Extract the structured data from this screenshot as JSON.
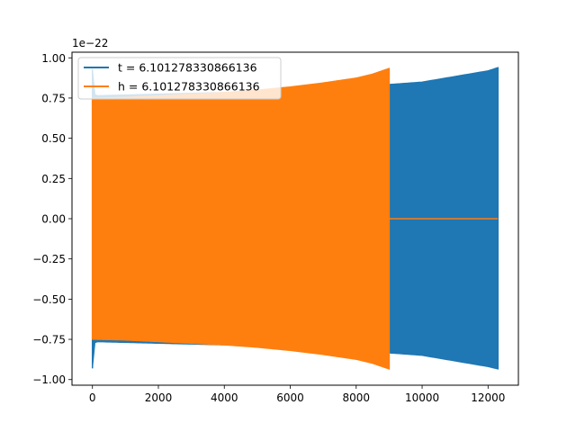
{
  "chart_data": {
    "type": "area",
    "title": "",
    "xlabel": "",
    "ylabel": "",
    "offset_text": "1e−22",
    "xlim": [
      -620,
      12920
    ],
    "ylim": [
      -1.035,
      1.035
    ],
    "xticks": [
      0,
      2000,
      4000,
      6000,
      8000,
      10000,
      12000
    ],
    "xtick_labels": [
      "0",
      "2000",
      "4000",
      "6000",
      "8000",
      "10000",
      "12000"
    ],
    "yticks": [
      -1.0,
      -0.75,
      -0.5,
      -0.25,
      0.0,
      0.25,
      0.5,
      0.75,
      1.0
    ],
    "ytick_labels": [
      "−1.00",
      "−0.75",
      "−0.50",
      "−0.25",
      "0.00",
      "0.25",
      "0.50",
      "0.75",
      "1.00"
    ],
    "grid": false,
    "legend_position": "top-left",
    "series": [
      {
        "name": "t = 6.101278330866136",
        "color": "#1f77b4",
        "x_start": 0,
        "x_end": 12300,
        "envelope_x": [
          0,
          20,
          50,
          80,
          100,
          2000,
          4000,
          6000,
          8000,
          9000,
          10000,
          12000,
          12300
        ],
        "envelope_upper": [
          0.93,
          0.8,
          0.78,
          0.77,
          0.765,
          0.775,
          0.785,
          0.8,
          0.82,
          0.835,
          0.85,
          0.92,
          0.94
        ],
        "envelope_lower": [
          -0.93,
          -0.8,
          -0.78,
          -0.77,
          -0.765,
          -0.775,
          -0.785,
          -0.8,
          -0.82,
          -0.835,
          -0.85,
          -0.92,
          -0.935
        ]
      },
      {
        "name": "h = 6.101278330866136",
        "color": "#ff7f0e",
        "x_start": 0,
        "x_end": 9000,
        "after_value": 0.0,
        "after_x_end": 12300,
        "envelope_x": [
          0,
          1000,
          2000,
          3000,
          4000,
          5000,
          6000,
          7000,
          8000,
          8500,
          9000
        ],
        "envelope_upper": [
          0.75,
          0.755,
          0.765,
          0.775,
          0.785,
          0.8,
          0.82,
          0.845,
          0.875,
          0.9,
          0.935
        ],
        "envelope_lower": [
          -0.75,
          -0.755,
          -0.765,
          -0.775,
          -0.785,
          -0.8,
          -0.82,
          -0.845,
          -0.875,
          -0.9,
          -0.935
        ]
      }
    ]
  }
}
